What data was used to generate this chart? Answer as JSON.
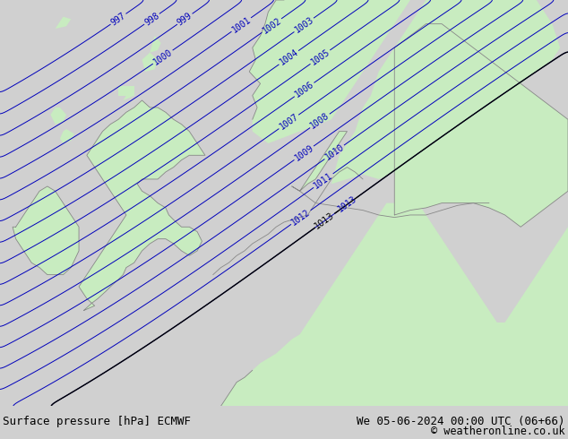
{
  "title_left": "Surface pressure [hPa] ECMWF",
  "title_right": "We 05-06-2024 00:00 UTC (06+66)",
  "copyright": "© weatheronline.co.uk",
  "bg_color": "#d0d0d0",
  "land_color": "#c8ecc0",
  "sea_color": "#d0d0d0",
  "contour_color": "#0000bb",
  "coastline_color": "#888888",
  "border_color": "#888888",
  "footer_bg": "#ffffff",
  "footer_text_color": "#000000",
  "pressure_min": 997,
  "pressure_max": 1013,
  "title_fontsize": 10,
  "label_fontsize": 7,
  "footer_fontsize": 9,
  "lon_min": -11,
  "lon_max": 25,
  "lat_min": 46,
  "lat_max": 63
}
